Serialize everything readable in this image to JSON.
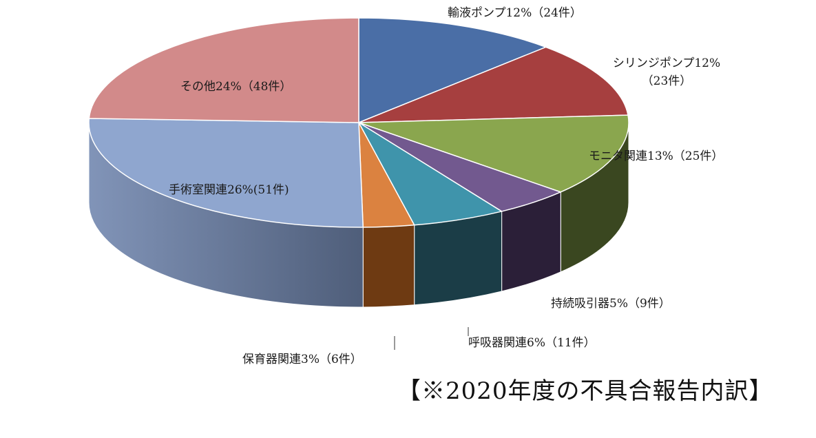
{
  "chart_data": {
    "type": "pie",
    "style": "3d",
    "legend": "none",
    "title": "",
    "caption": "【※2020年度の不具合報告内訳】",
    "slices": [
      {
        "label": "輸液ポンプ12%（24件）",
        "label_lines": [
          "輸液ポンプ12%（24件）"
        ],
        "value": 24,
        "percent": 12,
        "color": "#4A6EA6",
        "side_color": "#2C4470"
      },
      {
        "label": "シリンジポンプ12%（23件）",
        "label_lines": [
          "シリンジポンプ12%",
          "（23件）"
        ],
        "value": 23,
        "percent": 12,
        "color": "#A63F3F",
        "side_color": "#6A2626"
      },
      {
        "label": "モニタ関連13%（25件）",
        "label_lines": [
          "モニタ関連13%（25件）"
        ],
        "value": 25,
        "percent": 13,
        "color": "#8AA64E",
        "side_color": "#3A4720"
      },
      {
        "label": "持続吸引器5%（9件）",
        "label_lines": [
          "持続吸引器5%（9件）"
        ],
        "value": 9,
        "percent": 5,
        "color": "#72598F",
        "side_color": "#2B1F38"
      },
      {
        "label": "呼吸器関連6%（11件）",
        "label_lines": [
          "呼吸器関連6%（11件）"
        ],
        "value": 11,
        "percent": 6,
        "color": "#3F94AB",
        "side_color": "#1B3D47"
      },
      {
        "label": "保育器関連3%（6件）",
        "label_lines": [
          "保育器関連3%（6件）"
        ],
        "value": 6,
        "percent": 3,
        "color": "#DB8240",
        "side_color": "#6E3A12"
      },
      {
        "label": "手術室関連26%(51件)",
        "label_lines": [
          "手術室関連26%(51件)"
        ],
        "value": 51,
        "percent": 26,
        "color": "#8FA6CF",
        "side_color": "#66789C"
      },
      {
        "label": "その他24%（48件）",
        "label_lines": [
          "その他24%（48件）"
        ],
        "value": 48,
        "percent": 24,
        "color": "#D28A8A",
        "side_color": "#9C6363"
      }
    ]
  }
}
